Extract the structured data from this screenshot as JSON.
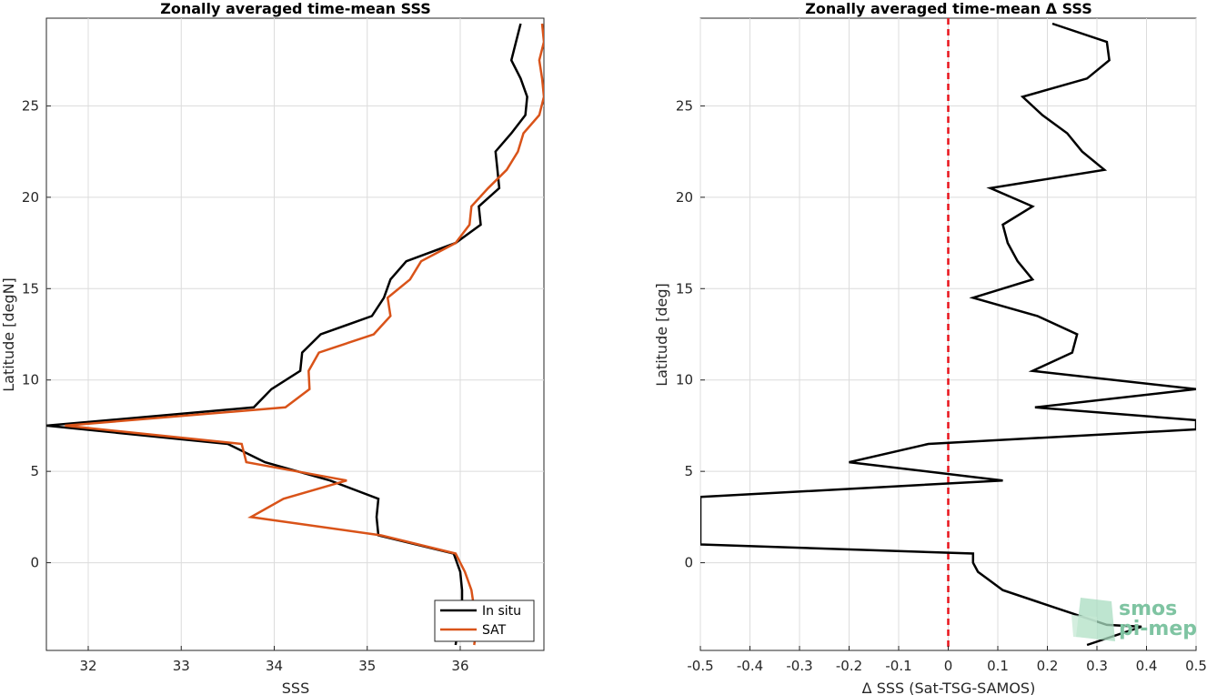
{
  "chart_data": [
    {
      "type": "line",
      "title": "Zonally averaged time-mean SSS",
      "xlabel": "SSS",
      "ylabel": "Latitude [degN]",
      "xlim": [
        31.55,
        36.9
      ],
      "ylim": [
        -4.8,
        29.8
      ],
      "xticks": [
        32,
        33,
        34,
        35,
        36
      ],
      "xtick_labels": [
        "32",
        "33",
        "34",
        "35",
        "36"
      ],
      "yticks": [
        0,
        5,
        10,
        15,
        20,
        25
      ],
      "ytick_labels": [
        "0",
        "5",
        "10",
        "15",
        "20",
        "25"
      ],
      "grid": true,
      "legend_position": "bottom-right",
      "colors": {
        "In situ": "#000000",
        "SAT": "#d95319"
      },
      "series": [
        {
          "name": "In situ",
          "lat": [
            29.5,
            28.5,
            27.5,
            26.5,
            25.5,
            24.5,
            23.5,
            22.5,
            21.5,
            20.5,
            19.5,
            18.5,
            17.5,
            16.5,
            15.5,
            14.5,
            13.5,
            12.5,
            11.5,
            10.5,
            9.5,
            8.5,
            7.5,
            6.5,
            5.5,
            4.5,
            3.5,
            2.5,
            1.5,
            0.5,
            -0.5,
            -1.5,
            -2.5,
            -3.5,
            -4.5
          ],
          "values": [
            36.65,
            36.6,
            36.55,
            36.65,
            36.72,
            36.7,
            36.55,
            36.38,
            36.4,
            36.42,
            36.2,
            36.22,
            35.95,
            35.42,
            35.25,
            35.18,
            35.05,
            34.5,
            34.3,
            34.28,
            33.97,
            33.78,
            31.55,
            33.5,
            33.9,
            34.6,
            35.12,
            35.1,
            35.12,
            35.93,
            36.0,
            36.02,
            36.02,
            35.98,
            35.95
          ]
        },
        {
          "name": "SAT",
          "lat": [
            29.5,
            28.5,
            27.5,
            26.5,
            25.5,
            24.5,
            23.5,
            22.5,
            21.5,
            20.5,
            19.5,
            18.5,
            17.5,
            16.5,
            15.5,
            14.5,
            13.5,
            12.5,
            11.5,
            10.5,
            9.5,
            8.5,
            7.5,
            6.5,
            5.5,
            4.5,
            3.5,
            2.5,
            1.5,
            0.5,
            -0.5,
            -1.5,
            -2.5,
            -3.5,
            -4.5
          ],
          "values": [
            36.88,
            36.9,
            36.85,
            36.88,
            36.9,
            36.85,
            36.68,
            36.62,
            36.5,
            36.3,
            36.12,
            36.1,
            35.95,
            35.58,
            35.46,
            35.22,
            35.25,
            35.07,
            34.48,
            34.37,
            34.38,
            34.12,
            31.75,
            33.65,
            33.7,
            34.78,
            34.1,
            33.75,
            35.15,
            35.95,
            36.05,
            36.12,
            36.15,
            36.18,
            36.15
          ]
        }
      ]
    },
    {
      "type": "line",
      "title": "Zonally averaged time-mean Δ SSS",
      "xlabel": "Δ SSS (Sat-TSG-SAMOS)",
      "ylabel": "Latitude [deg]",
      "xlim": [
        -0.5,
        0.5
      ],
      "ylim": [
        -4.8,
        29.8
      ],
      "xticks": [
        -0.5,
        -0.4,
        -0.3,
        -0.2,
        -0.1,
        0,
        0.1,
        0.2,
        0.3,
        0.4,
        0.5
      ],
      "xtick_labels": [
        "-0.5",
        "-0.4",
        "-0.3",
        "-0.2",
        "-0.1",
        "0",
        "0.1",
        "0.2",
        "0.3",
        "0.4",
        "0.5"
      ],
      "yticks": [
        0,
        5,
        10,
        15,
        20,
        25
      ],
      "ytick_labels": [
        "0",
        "5",
        "10",
        "15",
        "20",
        "25"
      ],
      "grid": true,
      "reference_line": {
        "x": 0,
        "color": "#e8141b",
        "style": "dashed"
      },
      "series": [
        {
          "name": "",
          "color": "#000000",
          "lat": [
            29.5,
            28.5,
            27.5,
            26.5,
            25.5,
            24.5,
            23.5,
            22.5,
            21.5,
            20.5,
            19.5,
            18.5,
            17.5,
            16.5,
            15.5,
            14.5,
            13.5,
            12.5,
            11.5,
            10.5,
            9.5,
            8.5,
            7.8,
            7.3,
            6.5,
            5.5,
            4.5,
            3.6,
            1.0,
            0.5,
            0.0,
            -0.5,
            -1.5,
            -2.5,
            -3.4,
            -3.5,
            -4.5
          ],
          "values": [
            0.21,
            0.32,
            0.325,
            0.28,
            0.15,
            0.19,
            0.24,
            0.27,
            0.315,
            0.085,
            0.17,
            0.11,
            0.12,
            0.14,
            0.17,
            0.05,
            0.18,
            0.26,
            0.25,
            0.17,
            0.5,
            0.175,
            0.5,
            0.5,
            -0.04,
            -0.2,
            0.11,
            -0.5,
            -0.5,
            0.05,
            0.05,
            0.06,
            0.11,
            0.22,
            0.32,
            0.39,
            0.28
          ]
        }
      ],
      "logo": {
        "text_top": "smos",
        "text_bottom": "pi-mep",
        "color": "#7fc4a2"
      }
    }
  ]
}
